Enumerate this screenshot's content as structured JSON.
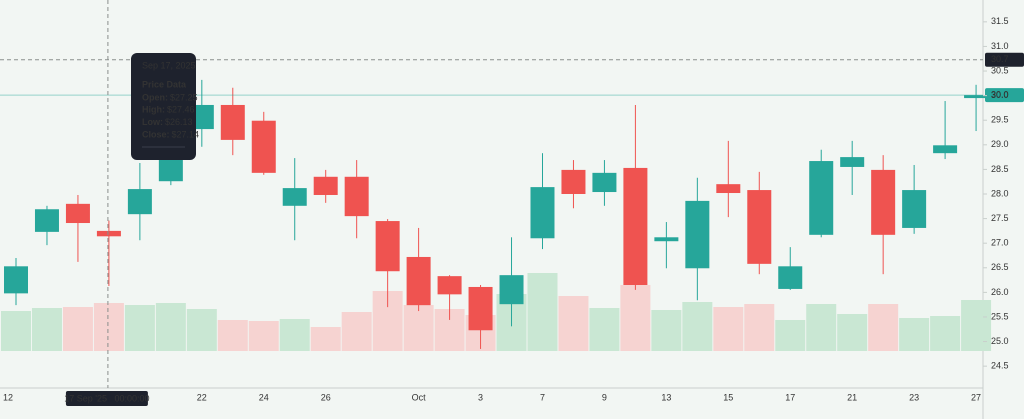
{
  "chart_data": {
    "type": "candlestick",
    "categories": [
      "12",
      null,
      null,
      null,
      null,
      null,
      "22",
      null,
      "24",
      null,
      "26",
      null,
      null,
      "Oct",
      null,
      "3",
      null,
      "7",
      null,
      "9",
      null,
      "13",
      null,
      "15",
      null,
      "17",
      null,
      "21",
      null,
      "23",
      null,
      "27"
    ],
    "open": [
      25.98,
      27.23,
      27.8,
      27.25,
      27.59,
      28.26,
      29.32,
      29.81,
      29.49,
      27.76,
      28.35,
      28.35,
      27.45,
      26.72,
      26.33,
      26.11,
      25.76,
      27.1,
      28.49,
      28.04,
      28.53,
      27.04,
      26.49,
      28.2,
      28.08,
      26.07,
      27.17,
      28.55,
      28.49,
      27.31,
      28.83,
      29.95
    ],
    "high": [
      26.7,
      27.76,
      27.98,
      27.46,
      28.63,
      29.3,
      30.32,
      30.16,
      29.67,
      28.73,
      28.49,
      28.69,
      27.49,
      27.31,
      26.35,
      26.15,
      27.12,
      28.83,
      28.69,
      28.69,
      29.81,
      27.43,
      28.33,
      29.08,
      28.45,
      26.92,
      28.9,
      29.08,
      28.79,
      28.59,
      29.89,
      30.22
    ],
    "low": [
      25.74,
      26.96,
      26.62,
      26.13,
      27.06,
      28.18,
      28.96,
      28.79,
      28.39,
      27.06,
      27.82,
      27.1,
      25.7,
      25.62,
      25.44,
      24.85,
      25.31,
      26.88,
      27.71,
      27.76,
      26.05,
      26.49,
      25.84,
      27.53,
      26.37,
      26.05,
      27.12,
      27.98,
      26.37,
      27.19,
      28.71,
      29.28
    ],
    "close": [
      26.53,
      27.69,
      27.41,
      27.14,
      28.1,
      28.94,
      29.81,
      29.1,
      28.43,
      28.12,
      27.98,
      27.55,
      26.43,
      25.74,
      25.96,
      25.23,
      26.35,
      28.14,
      28.0,
      28.43,
      26.15,
      27.12,
      27.86,
      28.02,
      26.58,
      26.53,
      28.67,
      28.75,
      27.17,
      28.08,
      28.99,
      30.01
    ],
    "volume": [
      40,
      43,
      44,
      48,
      46,
      48,
      42,
      31,
      30,
      32,
      24,
      39,
      60,
      46,
      42,
      36,
      57,
      78,
      55,
      43,
      66,
      41,
      49,
      44,
      47,
      31,
      47,
      37,
      47,
      33,
      35,
      51
    ],
    "up_color": "#26a69a",
    "down_color": "#ef5350",
    "volume_up_color": "#c9e7d3",
    "volume_down_color": "#f6d3d1",
    "ylim": [
      24.3,
      31.7
    ],
    "yticks": [
      24.5,
      {
        "value": 25,
        "label": "25.0"
      },
      25.5,
      {
        "value": 26,
        "label": "26.0"
      },
      26.5,
      {
        "value": 27,
        "label": "27.0"
      },
      27.5,
      {
        "value": 28,
        "label": "28.0"
      },
      28.5,
      {
        "value": 29,
        "label": "29.0"
      },
      29.5,
      {
        "value": 30,
        "label": "30.0"
      },
      30.5,
      {
        "value": 31,
        "label": "31.0"
      },
      31.5
    ],
    "y2lim": [
      0,
      100
    ],
    "crosshair": {
      "x_label": "17 Sep '25   00:00:00",
      "price": {
        "value": 30.73,
        "label": "30.7"
      }
    },
    "last_price_label": "30.0",
    "tooltip": {
      "date": "Sep 17, 2025",
      "heading": "Price Data",
      "labels": [
        "Open:",
        "High:",
        "Low:",
        "Close:"
      ],
      "values": [
        27.25,
        27.46,
        26.13,
        27.14
      ],
      "value_labels": [
        "$27.25",
        "$27.46",
        "$26.13",
        "$27.14"
      ],
      "value_colors": [
        "#ef5350",
        "#26a69a",
        "#ef5350",
        "#ef5350"
      ]
    }
  }
}
